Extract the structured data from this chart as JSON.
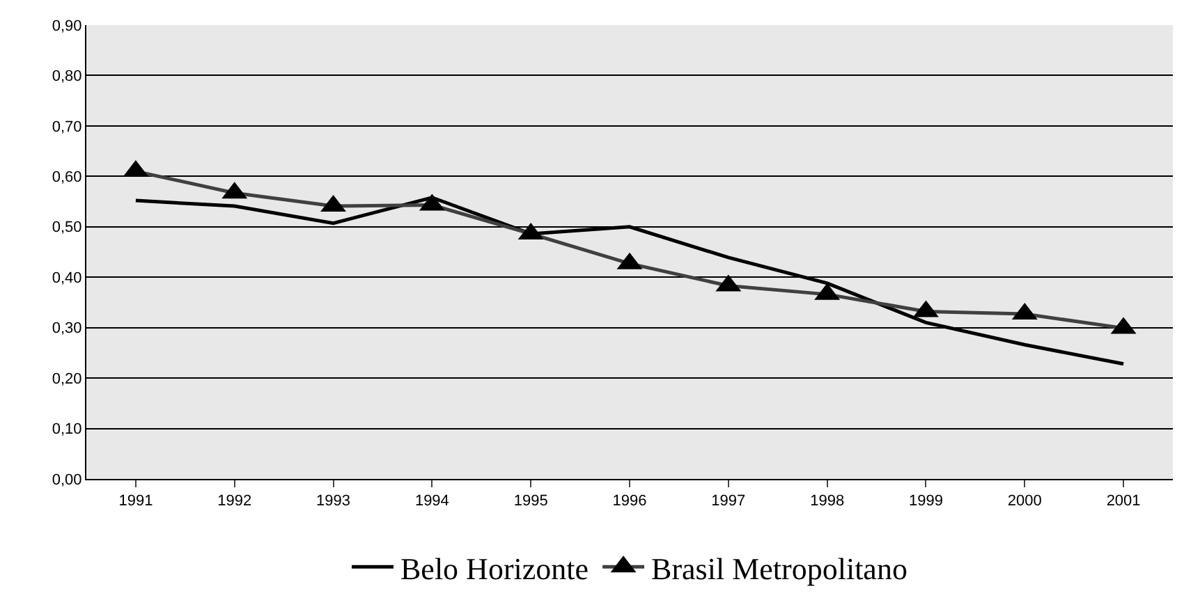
{
  "chart_data": {
    "type": "line",
    "categories": [
      "1991",
      "1992",
      "1993",
      "1994",
      "1995",
      "1996",
      "1997",
      "1998",
      "1999",
      "2000",
      "2001"
    ],
    "series": [
      {
        "name": "Belo Horizonte",
        "color": "#000000",
        "marker": "none",
        "values": [
          0.552,
          0.541,
          0.507,
          0.558,
          0.486,
          0.5,
          0.439,
          0.388,
          0.31,
          0.266,
          0.228
        ]
      },
      {
        "name": "Brasil Metropolitano",
        "color": "#404040",
        "marker": "triangle",
        "values": [
          0.61,
          0.567,
          0.541,
          0.543,
          0.486,
          0.427,
          0.383,
          0.366,
          0.332,
          0.327,
          0.299
        ]
      }
    ],
    "ylim": [
      0,
      0.9
    ],
    "yticks": [
      {
        "value": 0,
        "label": "0,00"
      },
      {
        "value": 0.1,
        "label": "0,10"
      },
      {
        "value": 0.2,
        "label": "0,20"
      },
      {
        "value": 0.3,
        "label": "0,30"
      },
      {
        "value": 0.4,
        "label": "0,40"
      },
      {
        "value": 0.5,
        "label": "0,50"
      },
      {
        "value": 0.6,
        "label": "0,60"
      },
      {
        "value": 0.7,
        "label": "0,70"
      },
      {
        "value": 0.8,
        "label": "0,80"
      },
      {
        "value": 0.9,
        "label": "0,90"
      }
    ],
    "grid": "y",
    "legend": "bottom",
    "line_style": "solid"
  }
}
